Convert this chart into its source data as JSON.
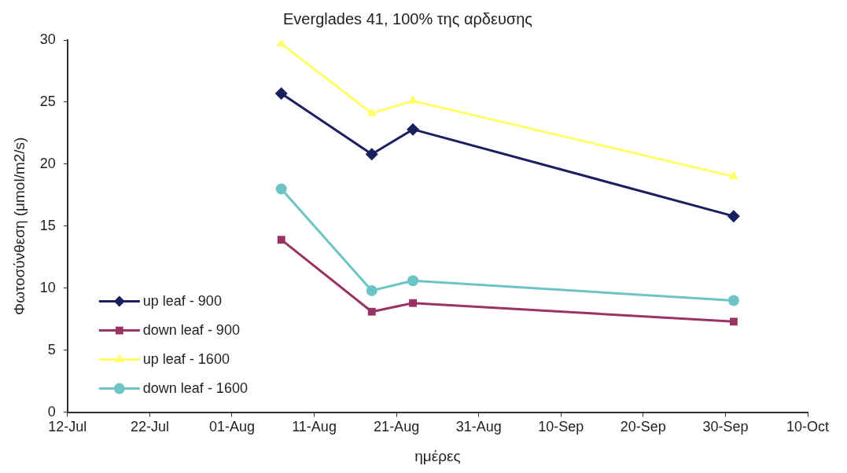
{
  "chart_data": {
    "type": "line",
    "title": "Everglades 41, 100% της αρδευσης",
    "xlabel": "ημέρες",
    "ylabel": "Φωτοσύνθεση (μmol/m2/s)",
    "x": [
      "--08-07",
      "--08-18",
      "--08-23",
      "--10-01"
    ],
    "series": [
      {
        "name": "up leaf - 900",
        "color": "#1a1f5e",
        "marker": "diamond",
        "values": [
          25.7,
          20.8,
          22.8,
          15.8
        ]
      },
      {
        "name": "down leaf - 900",
        "color": "#993366",
        "marker": "square",
        "values": [
          13.9,
          8.1,
          8.8,
          7.3
        ]
      },
      {
        "name": "up leaf - 1600",
        "color": "#ffff66",
        "marker": "triangle",
        "values": [
          29.7,
          24.1,
          25.1,
          19.0
        ]
      },
      {
        "name": "down leaf - 1600",
        "color": "#6cc4c4",
        "marker": "circle",
        "values": [
          18.0,
          9.8,
          10.6,
          9.0
        ]
      }
    ],
    "xlim": [
      "--07-12",
      "--10-10"
    ],
    "xticks": [
      {
        "value": "--07-12",
        "label": "12-Jul"
      },
      {
        "value": "--07-22",
        "label": "22-Jul"
      },
      {
        "value": "--08-01",
        "label": "01-Aug"
      },
      {
        "value": "--08-11",
        "label": "11-Aug"
      },
      {
        "value": "--08-21",
        "label": "21-Aug"
      },
      {
        "value": "--08-31",
        "label": "31-Aug"
      },
      {
        "value": "--09-10",
        "label": "10-Sep"
      },
      {
        "value": "--09-20",
        "label": "20-Sep"
      },
      {
        "value": "--09-30",
        "label": "30-Sep"
      },
      {
        "value": "--10-10",
        "label": "10-Oct"
      }
    ],
    "ylim": [
      0,
      30
    ],
    "yticks": [
      0,
      5,
      10,
      15,
      20,
      25,
      30
    ],
    "grid": false,
    "legend": "bottom left",
    "line_style": "solid"
  }
}
